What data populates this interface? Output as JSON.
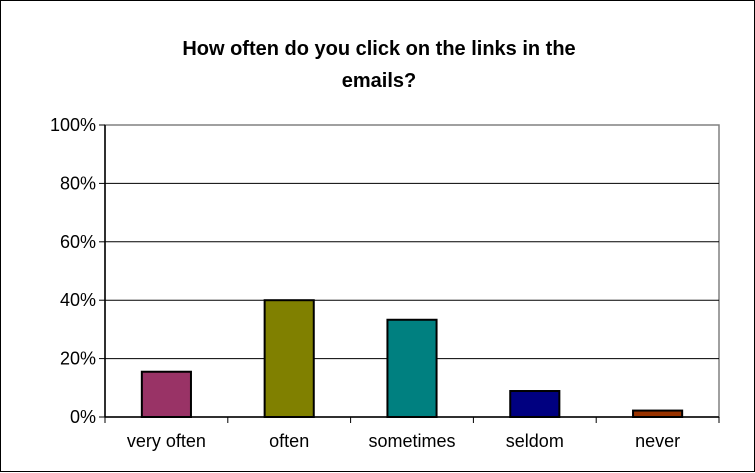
{
  "chart_data": {
    "type": "bar",
    "title_lines": [
      "How often do you click on the links in the",
      "emails?"
    ],
    "categories": [
      "very often",
      "often",
      "sometimes",
      "seldom",
      "never"
    ],
    "values": [
      15.5,
      40,
      33.3,
      8.9,
      2.2
    ],
    "value_unit": "%",
    "ylim": [
      0,
      100
    ],
    "y_ticks": [
      0,
      20,
      40,
      60,
      80,
      100
    ],
    "y_tick_labels": [
      "0%",
      "20%",
      "40%",
      "60%",
      "80%",
      "100%"
    ],
    "grid": true,
    "legend": "none",
    "bar_colors": [
      "#993366",
      "#808000",
      "#008080",
      "#000080",
      "#993300"
    ],
    "plot_background": "#ffffff",
    "gridline_color": "#000000"
  }
}
